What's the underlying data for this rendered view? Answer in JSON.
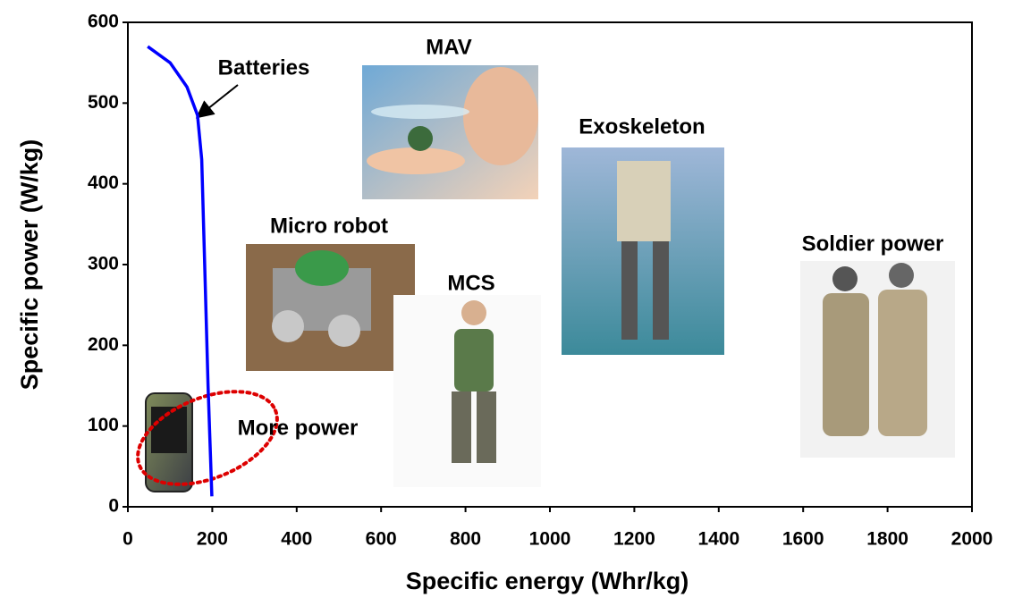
{
  "chart_data": {
    "type": "line",
    "xlabel": "Specific energy (Whr/kg)",
    "ylabel": "Specific power (W/kg)",
    "xlim": [
      0,
      2000
    ],
    "ylim": [
      0,
      600
    ],
    "xticks": [
      0,
      200,
      400,
      600,
      800,
      1000,
      1200,
      1400,
      1600,
      1800,
      2000
    ],
    "yticks": [
      0,
      100,
      200,
      300,
      400,
      500,
      600
    ],
    "series": [
      {
        "name": "Batteries",
        "color": "#0000ff",
        "x": [
          47,
          100,
          140,
          165,
          175,
          182,
          190,
          199
        ],
        "values": [
          570,
          550,
          520,
          485,
          430,
          300,
          150,
          13
        ]
      }
    ],
    "annotations": [
      "More power"
    ],
    "image_labels": [
      "MAV",
      "Exoskeleton",
      "Micro robot",
      "MCS",
      "Soldier power"
    ]
  }
}
